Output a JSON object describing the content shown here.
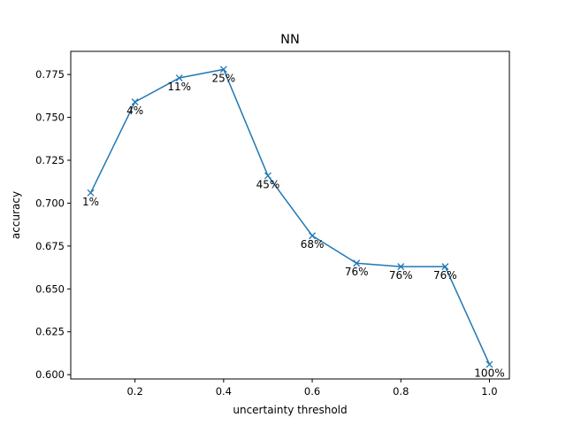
{
  "chart_data": {
    "type": "line",
    "title": "NN",
    "xlabel": "uncertainty threshold",
    "ylabel": "accuracy",
    "xlim": [
      0.055,
      1.045
    ],
    "ylim": [
      0.5975,
      0.7885
    ],
    "grid": false,
    "x_ticks": [
      {
        "value": 0.2,
        "label": "0.2"
      },
      {
        "value": 0.4,
        "label": "0.4"
      },
      {
        "value": 0.6,
        "label": "0.6"
      },
      {
        "value": 0.8,
        "label": "0.8"
      },
      {
        "value": 1.0,
        "label": "1.0"
      }
    ],
    "y_ticks": [
      {
        "value": 0.6,
        "label": "0.600"
      },
      {
        "value": 0.625,
        "label": "0.625"
      },
      {
        "value": 0.65,
        "label": "0.650"
      },
      {
        "value": 0.675,
        "label": "0.675"
      },
      {
        "value": 0.7,
        "label": "0.700"
      },
      {
        "value": 0.725,
        "label": "0.725"
      },
      {
        "value": 0.75,
        "label": "0.750"
      },
      {
        "value": 0.775,
        "label": "0.775"
      }
    ],
    "series": [
      {
        "color": "#1f77b4",
        "marker": "x",
        "x": [
          0.1,
          0.2,
          0.3,
          0.4,
          0.5,
          0.6,
          0.7,
          0.8,
          0.9,
          1.0
        ],
        "y": [
          0.706,
          0.759,
          0.773,
          0.778,
          0.716,
          0.681,
          0.665,
          0.663,
          0.663,
          0.606
        ],
        "labels": [
          "1%",
          "4%",
          "11%",
          "25%",
          "45%",
          "68%",
          "76%",
          "76%",
          "76%",
          "100%"
        ]
      }
    ]
  }
}
